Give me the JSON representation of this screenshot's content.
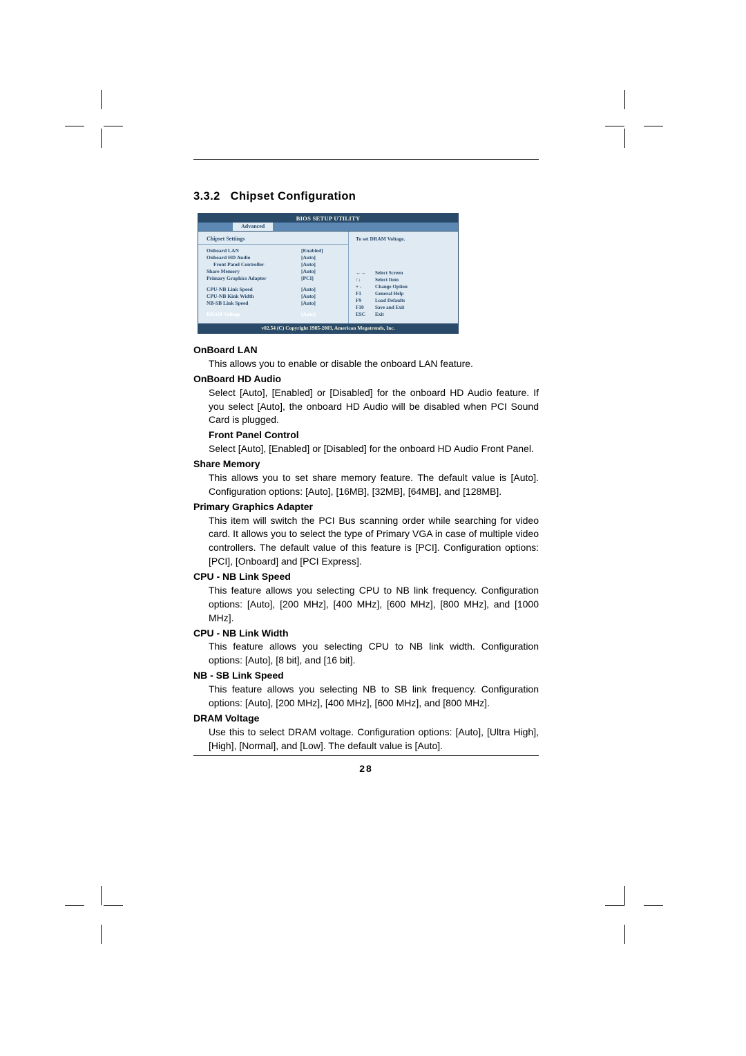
{
  "section": {
    "number": "3.3.2",
    "title": "Chipset Configuration"
  },
  "bios": {
    "title": "BIOS SETUP UTILITY",
    "tab": "Advanced",
    "panel_title": "Chipset Settings",
    "help": "To set DRAM Voltage.",
    "groups": [
      [
        {
          "label": "Onboard LAN",
          "value": "[Enabled]",
          "indent": false
        },
        {
          "label": "Onboard HD Audio",
          "value": "[Auto]",
          "indent": false
        },
        {
          "label": "Front Panel Controller",
          "value": "[Auto]",
          "indent": true
        },
        {
          "label": "Share Memory",
          "value": "[Auto]",
          "indent": false
        },
        {
          "label": "Primary Graphics Adapter",
          "value": "[PCI]",
          "indent": false
        }
      ],
      [
        {
          "label": "CPU-NB Link Speed",
          "value": "[Auto]",
          "indent": false
        },
        {
          "label": "CPU-NB Kink Width",
          "value": "[Auto]",
          "indent": false
        },
        {
          "label": "NB-SB Link Speed",
          "value": "[Auto]",
          "indent": false
        }
      ],
      [
        {
          "label": "DRAM Voltage",
          "value": "[Auto]",
          "indent": false,
          "selected": true
        }
      ]
    ],
    "keys": [
      {
        "k": "←→",
        "a": "Select Screen"
      },
      {
        "k": "↑↓",
        "a": "Select Item"
      },
      {
        "k": "+ -",
        "a": "Change Option"
      },
      {
        "k": "F1",
        "a": "General Help"
      },
      {
        "k": "F9",
        "a": "Load Defaults"
      },
      {
        "k": "F10",
        "a": "Save and Exit"
      },
      {
        "k": "ESC",
        "a": "Exit"
      }
    ],
    "copyright": "v02.54 (C) Copyright 1985-2003, American Megatrends, Inc."
  },
  "items": [
    {
      "h": "OnBoard LAN",
      "p": "This allows you to enable or disable the onboard LAN feature."
    },
    {
      "h": "OnBoard HD Audio",
      "p": "Select [Auto], [Enabled] or [Disabled] for the onboard HD Audio feature. If you select [Auto], the onboard HD Audio will be disabled when PCI Sound Card is plugged."
    },
    {
      "h": "Front Panel Control",
      "sub": true,
      "p": "Select [Auto], [Enabled] or [Disabled] for the onboard HD Audio Front Panel."
    },
    {
      "h": "Share Memory",
      "p": "This allows you to set share memory feature. The default value is [Auto]. Configuration options: [Auto], [16MB], [32MB], [64MB], and [128MB]."
    },
    {
      "h": "Primary Graphics Adapter",
      "p": "This item will switch the PCI Bus scanning order while searching for video card. It allows you to select the type of Primary VGA in case of multiple video controllers. The default value of this feature is [PCI]. Configuration options: [PCI], [Onboard] and [PCI Express]."
    },
    {
      "h": "CPU - NB Link Speed",
      "p": "This feature allows you selecting CPU to NB link frequency. Configuration options: [Auto], [200 MHz], [400 MHz], [600 MHz], [800 MHz], and [1000 MHz]."
    },
    {
      "h": "CPU - NB Link Width",
      "p": "This feature allows you selecting CPU to NB link width. Configuration options: [Auto], [8 bit], and [16 bit]."
    },
    {
      "h": "NB - SB Link Speed",
      "p": "This feature allows you selecting NB to SB link frequency. Configuration options: [Auto], [200 MHz], [400 MHz], [600 MHz], and [800 MHz]."
    },
    {
      "h": "DRAM Voltage",
      "p": "Use this to select DRAM voltage. Configuration options: [Auto], [Ultra High], [High], [Normal], and [Low]. The default value is [Auto]."
    }
  ],
  "page_number": "28",
  "colors": {
    "bios_outer": "#5d88b4",
    "bios_dark": "#2a4a6a",
    "bios_panel": "#dfeaf3"
  }
}
